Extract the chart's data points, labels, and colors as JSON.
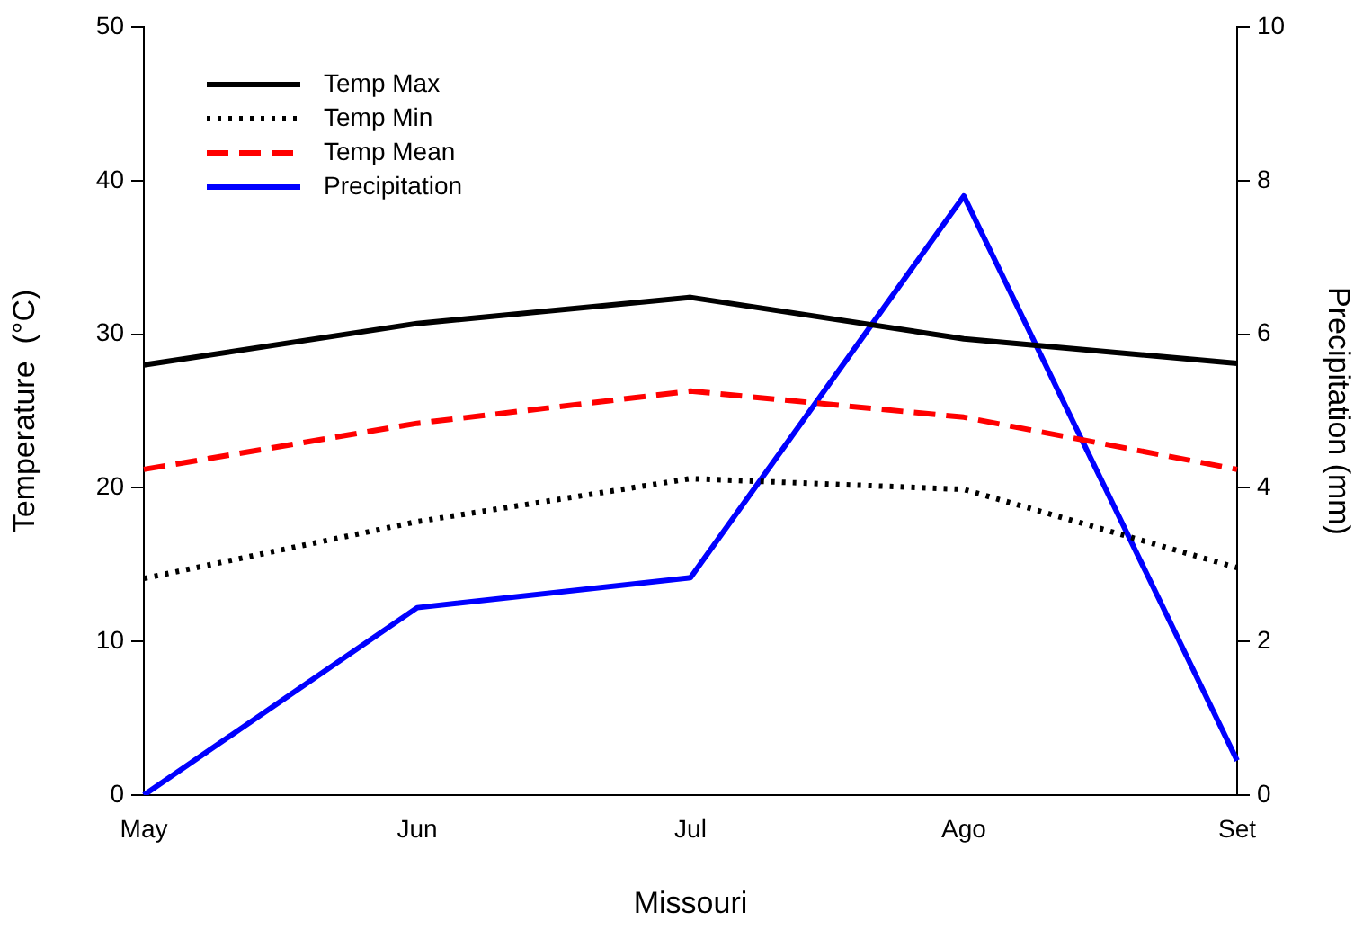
{
  "chart_data": {
    "type": "line",
    "categories": [
      "May",
      "Jun",
      "Jul",
      "Ago",
      "Set"
    ],
    "xlabel": "Missouri",
    "ylabel": "Temperature  (°C)",
    "y2label": "Precipitation (mm)",
    "ylim": [
      0,
      50
    ],
    "yticks": [
      0,
      10,
      20,
      30,
      40,
      50
    ],
    "y2lim": [
      0,
      10
    ],
    "y2ticks": [
      0,
      2,
      4,
      6,
      8,
      10
    ],
    "legend": "top left",
    "marker": "none",
    "series": [
      {
        "name": "Temp Max",
        "color": "#000000",
        "line_style": "solid",
        "values": [
          28,
          30.7,
          32.4,
          29.7,
          28.1
        ]
      },
      {
        "name": "Temp Min",
        "color": "#000000",
        "line_style": "dotted",
        "values": [
          14.1,
          17.8,
          20.6,
          19.9,
          14.8
        ]
      },
      {
        "name": "Temp Mean",
        "color": "#ff0000",
        "line_style": "dashed",
        "values": [
          21.2,
          24.2,
          26.3,
          24.6,
          21.2
        ]
      },
      {
        "name": "Precipitation",
        "color": "#0000ff",
        "line_style": "solid",
        "axis": "y2",
        "values": [
          0,
          2.44,
          2.83,
          7.8,
          0.45
        ]
      }
    ]
  }
}
